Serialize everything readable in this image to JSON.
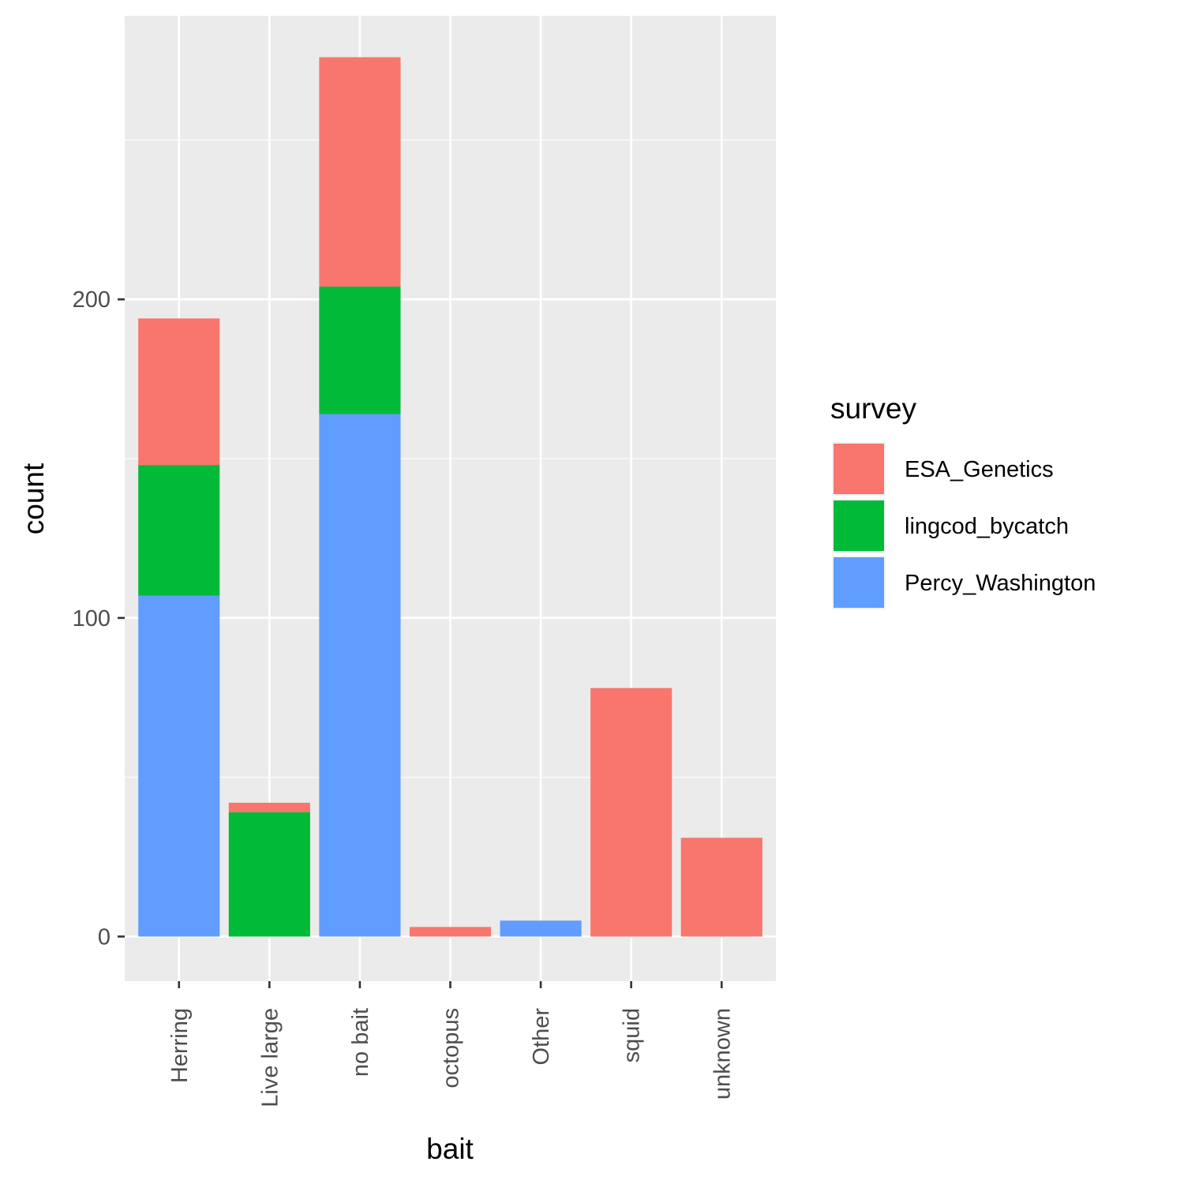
{
  "chart_data": {
    "type": "bar",
    "stacked": true,
    "xlabel": "bait",
    "ylabel": "count",
    "categories": [
      "Herring",
      "Live large",
      "no bait",
      "octopus",
      "Other",
      "squid",
      "unknown"
    ],
    "yticks": [
      0,
      100,
      200
    ],
    "ylim": [
      -14,
      289
    ],
    "grid": true,
    "legend": {
      "title": "survey",
      "position": "right"
    },
    "series": [
      {
        "name": "ESA_Genetics",
        "color": "#F8766D",
        "values": [
          46,
          3,
          72,
          3,
          0,
          78,
          31
        ]
      },
      {
        "name": "lingcod_bycatch",
        "color": "#00BA38",
        "values": [
          41,
          39,
          40,
          0,
          0,
          0,
          0
        ]
      },
      {
        "name": "Percy_Washington",
        "color": "#619CFF",
        "values": [
          107,
          0,
          164,
          0,
          5,
          0,
          0
        ]
      }
    ],
    "stack_order": [
      "Percy_Washington",
      "lingcod_bycatch",
      "ESA_Genetics"
    ]
  }
}
